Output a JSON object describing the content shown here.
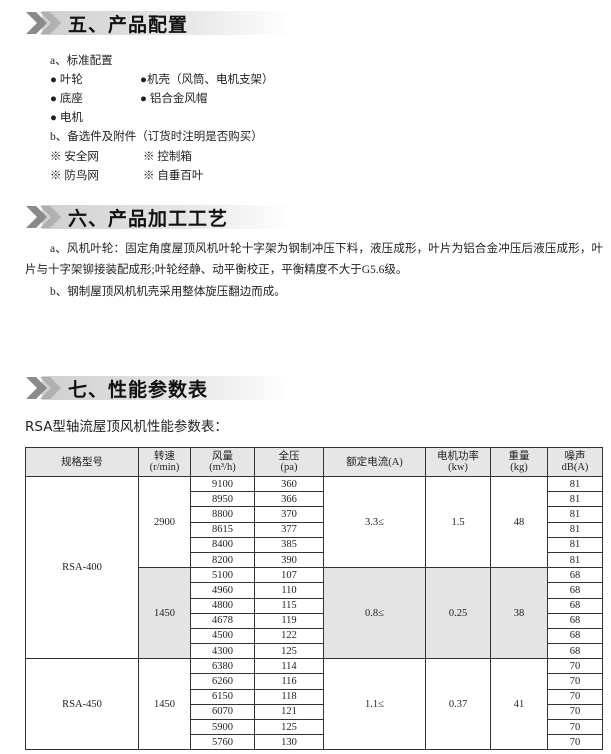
{
  "section5": {
    "title": "五、产品配置",
    "standard_label": "a、标准配置",
    "standard_items": [
      "● 叶轮",
      "●机壳（风筒、电机支架）",
      "● 底座",
      "● 铝合金风帽",
      "● 电机"
    ],
    "optional_label": "b、备选件及附件（订货时注明是否购买）",
    "optional_items": [
      "※ 安全网",
      "※ 控制箱",
      "※ 防鸟网",
      "※ 自垂百叶"
    ]
  },
  "section6": {
    "title": "六、产品加工工艺",
    "paragraphs": [
      "a、风机叶轮：固定角度屋顶风机叶轮十字架为钢制冲压下料，液压成形，叶片为铝合金冲压后液压成形，叶片与十字架铆接装配成形;叶轮经静、动平衡校正，平衡精度不大于G5.6级。",
      "b、钢制屋顶风机机壳采用整体旋压翻边而成。"
    ]
  },
  "section7": {
    "title": "七、性能参数表",
    "table_title": "RSA型轴流屋顶风机性能参数表：",
    "table": {
      "headers": [
        [
          "规格型号"
        ],
        [
          "转速",
          "(r/min)"
        ],
        [
          "风量",
          "(m³/h)"
        ],
        [
          "全压",
          "(pa)"
        ],
        [
          "额定电流(A)"
        ],
        [
          "电机功率",
          "(kw)"
        ],
        [
          "重量",
          "(kg)"
        ],
        [
          "噪声",
          "dB(A)"
        ]
      ],
      "models": [
        {
          "model": "RSA-400",
          "groups": [
            {
              "speed": "2900",
              "current": "3.3≤",
              "power": "1.5",
              "weight": "48",
              "rows": [
                [
                  "9100",
                  "360",
                  "81"
                ],
                [
                  "8950",
                  "366",
                  "81"
                ],
                [
                  "8800",
                  "370",
                  "81"
                ],
                [
                  "8615",
                  "377",
                  "81"
                ],
                [
                  "8400",
                  "385",
                  "81"
                ],
                [
                  "8200",
                  "390",
                  "81"
                ]
              ]
            },
            {
              "speed": "1450",
              "current": "0.8≤",
              "power": "0.25",
              "weight": "38",
              "rows": [
                [
                  "5100",
                  "107",
                  "68"
                ],
                [
                  "4960",
                  "110",
                  "68"
                ],
                [
                  "4800",
                  "115",
                  "68"
                ],
                [
                  "4678",
                  "119",
                  "68"
                ],
                [
                  "4500",
                  "122",
                  "68"
                ],
                [
                  "4300",
                  "125",
                  "68"
                ]
              ]
            }
          ]
        },
        {
          "model": "RSA-450",
          "groups": [
            {
              "speed": "1450",
              "current": "1.1≤",
              "power": "0.37",
              "weight": "41",
              "rows": [
                [
                  "6380",
                  "114",
                  "70"
                ],
                [
                  "6260",
                  "116",
                  "70"
                ],
                [
                  "6150",
                  "118",
                  "70"
                ],
                [
                  "6070",
                  "121",
                  "70"
                ],
                [
                  "5900",
                  "125",
                  "70"
                ],
                [
                  "5760",
                  "130",
                  "70"
                ]
              ]
            }
          ]
        }
      ]
    }
  }
}
